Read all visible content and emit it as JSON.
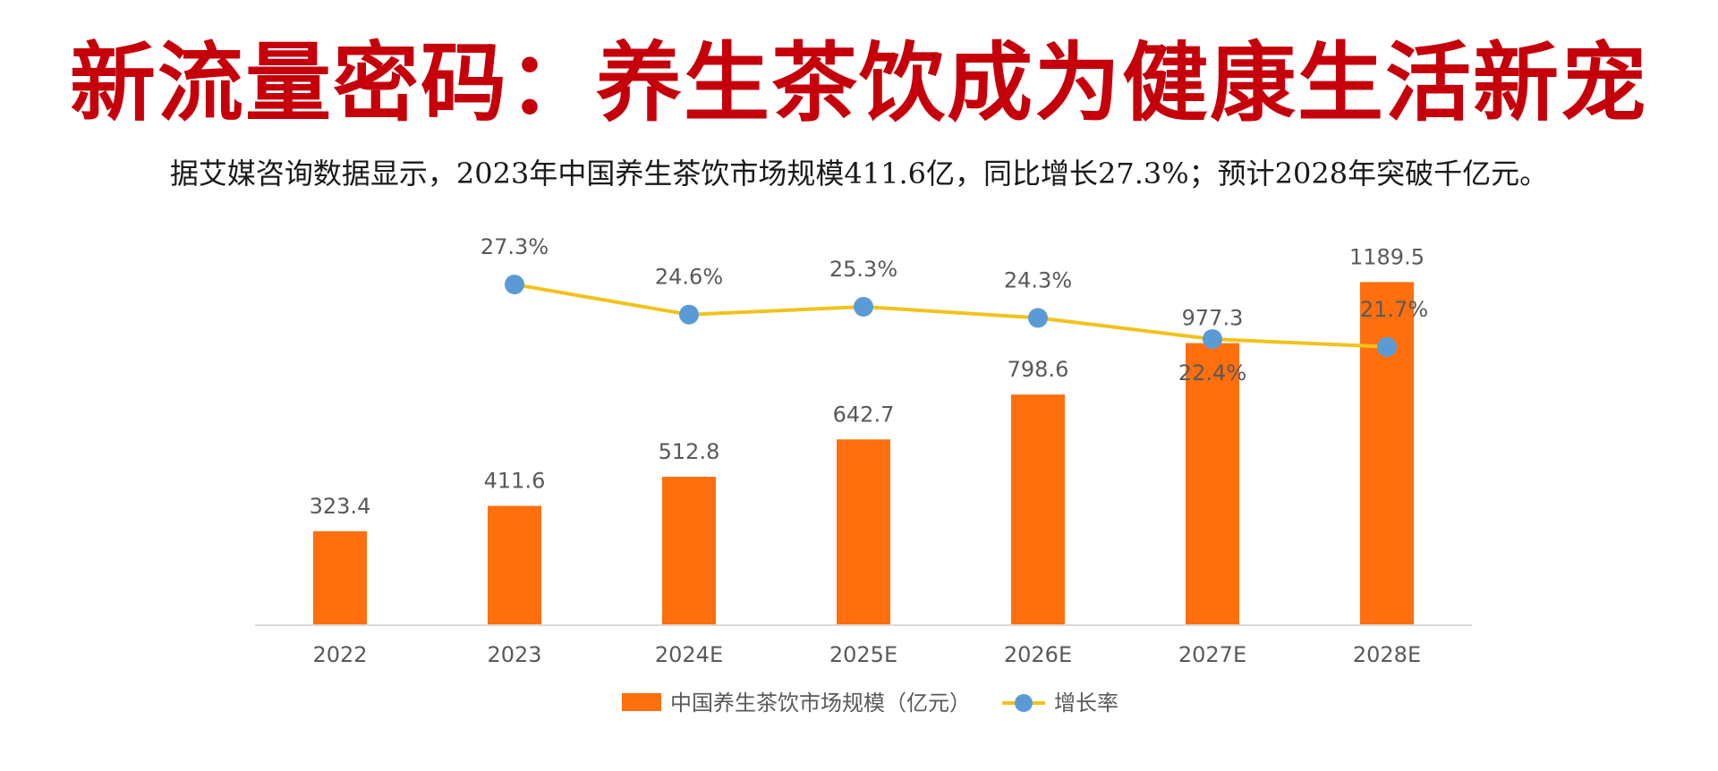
{
  "title": "新流量密码：养生茶饮成为健康生活新宠",
  "subtitle": "据艾媒咨询数据显示，2023年中国养生茶饮市场规模411.6亿，同比增长27.3%；预计2028年突破千亿元。",
  "chart_data": {
    "type": "bar",
    "categories": [
      "2022",
      "2023",
      "2024E",
      "2025E",
      "2026E",
      "2027E",
      "2028E"
    ],
    "series": [
      {
        "name": "中国养生茶饮市场规模（亿元）",
        "type": "bar",
        "color": "#ff6f0e",
        "values": [
          323.4,
          411.6,
          512.8,
          642.7,
          798.6,
          977.3,
          1189.5
        ],
        "labels": [
          "323.4",
          "411.6",
          "512.8",
          "642.7",
          "798.6",
          "977.3",
          "1189.5"
        ]
      },
      {
        "name": "增长率",
        "type": "line",
        "color": "#f2c21b",
        "marker_color": "#5b9bd5",
        "values": [
          null,
          27.3,
          24.6,
          25.3,
          24.3,
          22.4,
          21.7
        ],
        "labels": [
          null,
          "27.3%",
          "24.6%",
          "25.3%",
          "24.3%",
          "22.4%",
          "21.7%"
        ]
      }
    ],
    "ylim_bar": [
      0,
      1200
    ],
    "ylim_line": [
      0,
      31
    ],
    "grid": false,
    "legend": "bottom"
  }
}
